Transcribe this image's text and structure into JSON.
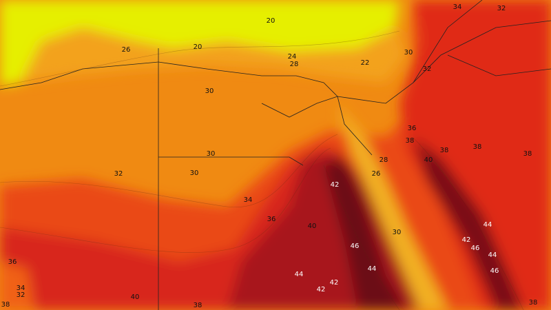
{
  "map": {
    "contour_labels": [
      20,
      20,
      26,
      24,
      28,
      22,
      34,
      32,
      30,
      32,
      30,
      36,
      38,
      38,
      38,
      38,
      40,
      30,
      28,
      26,
      30,
      32,
      42,
      34,
      36,
      40,
      44,
      30,
      42,
      46,
      46,
      44,
      36,
      44,
      46,
      44,
      42,
      42,
      34,
      32,
      40,
      38,
      38,
      38
    ]
  }
}
